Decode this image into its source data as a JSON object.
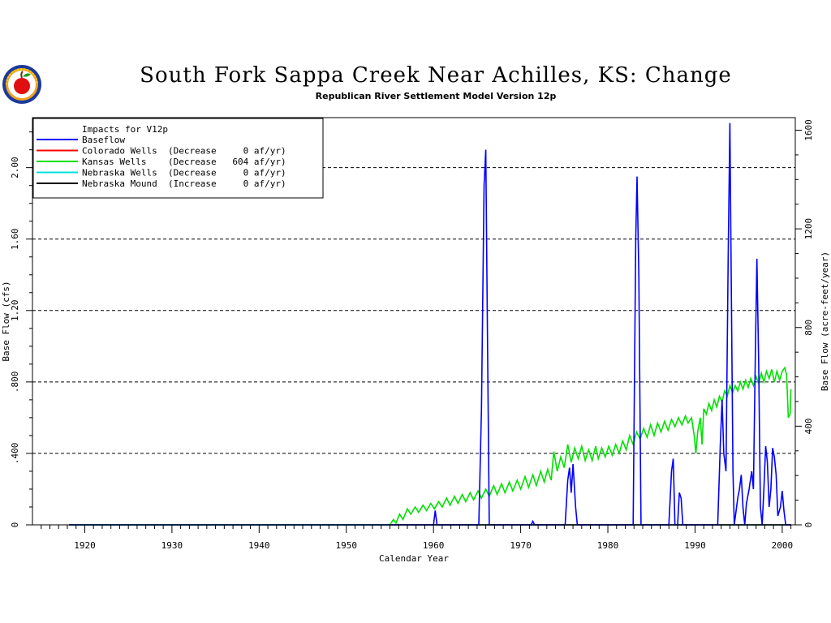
{
  "page": {
    "title": "South Fork Sappa Creek Near Achilles, KS: Change",
    "subtitle": "Republican River Settlement Model Version 12p"
  },
  "logo": {
    "icon": "apple-seal-icon"
  },
  "chart_data": {
    "type": "line",
    "title": "South Fork Sappa Creek Near Achilles, KS: Change",
    "subtitle": "Republican River Settlement Model Version 12p",
    "xlabel": "Calendar Year",
    "ylabel": "Base Flow (cfs)",
    "y2label": "Base Flow (acre-feet/year)",
    "xlim": [
      1914,
      2001.5
    ],
    "ylim": [
      0,
      2.28
    ],
    "y2lim": [
      0,
      1651
    ],
    "x_ticks": [
      1920,
      1930,
      1940,
      1950,
      1960,
      1970,
      1980,
      1990,
      2000
    ],
    "x_tick_labels": [
      "1920",
      "1930",
      "1940",
      "1950",
      "1960",
      "1970",
      "1980",
      "1990",
      "2000"
    ],
    "y_ticks": [
      0,
      0.4,
      0.8,
      1.2,
      1.6,
      2.0
    ],
    "y_tick_labels": [
      "0",
      ".400",
      ".800",
      "1.20",
      "1.60",
      "2.00"
    ],
    "y2_ticks": [
      0,
      400,
      800,
      1200,
      1600
    ],
    "y2_tick_labels": [
      "0",
      "400",
      "800",
      "1200",
      "1600"
    ],
    "grid": "horizontal dashed",
    "legend_position": "top-left",
    "legend": {
      "heading": "Impacts for V12p",
      "entries": [
        {
          "label": "Baseflow",
          "color": "#0000ff"
        },
        {
          "label": "Colorado Wells  (Decrease     0 af/yr)",
          "color": "#ff0000"
        },
        {
          "label": "Kansas Wells    (Decrease   604 af/yr)",
          "color": "#00e000"
        },
        {
          "label": "Nebraska Wells  (Decrease     0 af/yr)",
          "color": "#00e0e0"
        },
        {
          "label": "Nebraska Mound  (Increase     0 af/yr)",
          "color": "#000000"
        }
      ]
    },
    "series": [
      {
        "name": "Baseflow",
        "color": "#0000ff",
        "points": [
          [
            1918.2,
            0
          ],
          [
            1960.0,
            0
          ],
          [
            1960.2,
            0.08
          ],
          [
            1960.4,
            0
          ],
          [
            1965.2,
            0
          ],
          [
            1965.5,
            0.65
          ],
          [
            1965.8,
            1.9
          ],
          [
            1966.0,
            2.1
          ],
          [
            1966.2,
            1.0
          ],
          [
            1966.4,
            0
          ],
          [
            1971.2,
            0
          ],
          [
            1971.4,
            0.02
          ],
          [
            1971.6,
            0
          ],
          [
            1975.1,
            0
          ],
          [
            1975.4,
            0.25
          ],
          [
            1975.6,
            0.32
          ],
          [
            1975.8,
            0.18
          ],
          [
            1976.0,
            0.34
          ],
          [
            1976.3,
            0.1
          ],
          [
            1976.5,
            0
          ],
          [
            1982.9,
            0
          ],
          [
            1983.2,
            1.6
          ],
          [
            1983.35,
            1.95
          ],
          [
            1983.55,
            1.4
          ],
          [
            1983.8,
            0
          ],
          [
            1987.0,
            0
          ],
          [
            1987.3,
            0.3
          ],
          [
            1987.5,
            0.37
          ],
          [
            1987.7,
            0
          ],
          [
            1988.0,
            0
          ],
          [
            1988.2,
            0.18
          ],
          [
            1988.4,
            0.15
          ],
          [
            1988.6,
            0
          ],
          [
            1992.6,
            0
          ],
          [
            1992.9,
            0.45
          ],
          [
            1993.1,
            0.7
          ],
          [
            1993.3,
            0.4
          ],
          [
            1993.55,
            0.3
          ],
          [
            1993.8,
            1.5
          ],
          [
            1994.0,
            2.25
          ],
          [
            1994.2,
            1.1
          ],
          [
            1994.35,
            0.3
          ],
          [
            1994.5,
            0
          ],
          [
            1994.9,
            0.15
          ],
          [
            1995.1,
            0.2
          ],
          [
            1995.3,
            0.28
          ],
          [
            1995.5,
            0.1
          ],
          [
            1995.7,
            0
          ],
          [
            1995.9,
            0.12
          ],
          [
            1996.2,
            0.2
          ],
          [
            1996.5,
            0.3
          ],
          [
            1996.7,
            0.2
          ],
          [
            1996.9,
            0.9
          ],
          [
            1997.1,
            1.49
          ],
          [
            1997.3,
            0.9
          ],
          [
            1997.5,
            0.1
          ],
          [
            1997.7,
            0
          ],
          [
            1997.9,
            0.2
          ],
          [
            1998.1,
            0.44
          ],
          [
            1998.3,
            0.35
          ],
          [
            1998.5,
            0.1
          ],
          [
            1998.7,
            0.2
          ],
          [
            1998.9,
            0.43
          ],
          [
            1999.1,
            0.38
          ],
          [
            1999.3,
            0.28
          ],
          [
            1999.5,
            0.05
          ],
          [
            1999.8,
            0.1
          ],
          [
            2000.0,
            0.19
          ],
          [
            2000.2,
            0.08
          ],
          [
            2000.4,
            0
          ],
          [
            2001.0,
            0
          ]
        ]
      },
      {
        "name": "Kansas Wells",
        "color": "#00e000",
        "points": [
          [
            1918.2,
            0
          ],
          [
            1955.0,
            0
          ],
          [
            1955.4,
            0.03
          ],
          [
            1955.7,
            0.01
          ],
          [
            1956.1,
            0.06
          ],
          [
            1956.5,
            0.03
          ],
          [
            1957.0,
            0.09
          ],
          [
            1957.4,
            0.06
          ],
          [
            1957.9,
            0.1
          ],
          [
            1958.3,
            0.07
          ],
          [
            1958.8,
            0.11
          ],
          [
            1959.2,
            0.08
          ],
          [
            1959.7,
            0.12
          ],
          [
            1960.1,
            0.09
          ],
          [
            1960.6,
            0.13
          ],
          [
            1961.0,
            0.1
          ],
          [
            1961.5,
            0.15
          ],
          [
            1961.9,
            0.11
          ],
          [
            1962.4,
            0.16
          ],
          [
            1962.8,
            0.12
          ],
          [
            1963.3,
            0.17
          ],
          [
            1963.7,
            0.13
          ],
          [
            1964.2,
            0.18
          ],
          [
            1964.6,
            0.14
          ],
          [
            1965.1,
            0.19
          ],
          [
            1965.5,
            0.15
          ],
          [
            1966.0,
            0.2
          ],
          [
            1966.4,
            0.16
          ],
          [
            1966.9,
            0.22
          ],
          [
            1967.3,
            0.17
          ],
          [
            1967.8,
            0.23
          ],
          [
            1968.2,
            0.18
          ],
          [
            1968.7,
            0.24
          ],
          [
            1969.1,
            0.19
          ],
          [
            1969.6,
            0.25
          ],
          [
            1970.0,
            0.2
          ],
          [
            1970.5,
            0.27
          ],
          [
            1970.9,
            0.21
          ],
          [
            1971.4,
            0.28
          ],
          [
            1971.8,
            0.22
          ],
          [
            1972.3,
            0.3
          ],
          [
            1972.7,
            0.24
          ],
          [
            1973.1,
            0.31
          ],
          [
            1973.5,
            0.25
          ],
          [
            1973.8,
            0.41
          ],
          [
            1974.2,
            0.3
          ],
          [
            1974.6,
            0.38
          ],
          [
            1975.0,
            0.32
          ],
          [
            1975.4,
            0.45
          ],
          [
            1975.8,
            0.35
          ],
          [
            1976.2,
            0.43
          ],
          [
            1976.6,
            0.37
          ],
          [
            1977.0,
            0.44
          ],
          [
            1977.4,
            0.36
          ],
          [
            1977.8,
            0.42
          ],
          [
            1978.2,
            0.36
          ],
          [
            1978.6,
            0.44
          ],
          [
            1978.9,
            0.37
          ],
          [
            1979.3,
            0.43
          ],
          [
            1979.7,
            0.38
          ],
          [
            1980.1,
            0.44
          ],
          [
            1980.5,
            0.39
          ],
          [
            1980.9,
            0.45
          ],
          [
            1981.3,
            0.4
          ],
          [
            1981.7,
            0.47
          ],
          [
            1982.1,
            0.42
          ],
          [
            1982.5,
            0.5
          ],
          [
            1982.9,
            0.45
          ],
          [
            1983.3,
            0.52
          ],
          [
            1983.7,
            0.48
          ],
          [
            1984.1,
            0.54
          ],
          [
            1984.5,
            0.49
          ],
          [
            1984.9,
            0.56
          ],
          [
            1985.3,
            0.5
          ],
          [
            1985.7,
            0.57
          ],
          [
            1986.1,
            0.52
          ],
          [
            1986.5,
            0.58
          ],
          [
            1986.9,
            0.53
          ],
          [
            1987.3,
            0.59
          ],
          [
            1987.7,
            0.55
          ],
          [
            1988.1,
            0.6
          ],
          [
            1988.5,
            0.56
          ],
          [
            1988.9,
            0.61
          ],
          [
            1989.2,
            0.57
          ],
          [
            1989.6,
            0.6
          ],
          [
            1989.9,
            0.5
          ],
          [
            1990.1,
            0.4
          ],
          [
            1990.3,
            0.52
          ],
          [
            1990.6,
            0.6
          ],
          [
            1990.8,
            0.45
          ],
          [
            1991.0,
            0.65
          ],
          [
            1991.3,
            0.62
          ],
          [
            1991.6,
            0.68
          ],
          [
            1991.9,
            0.64
          ],
          [
            1992.2,
            0.7
          ],
          [
            1992.5,
            0.66
          ],
          [
            1992.8,
            0.72
          ],
          [
            1993.1,
            0.69
          ],
          [
            1993.4,
            0.75
          ],
          [
            1993.7,
            0.72
          ],
          [
            1994.0,
            0.78
          ],
          [
            1994.3,
            0.74
          ],
          [
            1994.6,
            0.78
          ],
          [
            1994.9,
            0.75
          ],
          [
            1995.2,
            0.8
          ],
          [
            1995.5,
            0.76
          ],
          [
            1995.8,
            0.81
          ],
          [
            1996.1,
            0.77
          ],
          [
            1996.4,
            0.82
          ],
          [
            1996.7,
            0.78
          ],
          [
            1997.0,
            0.83
          ],
          [
            1997.3,
            0.79
          ],
          [
            1997.6,
            0.85
          ],
          [
            1997.9,
            0.8
          ],
          [
            1998.2,
            0.86
          ],
          [
            1998.5,
            0.82
          ],
          [
            1998.8,
            0.87
          ],
          [
            1999.1,
            0.8
          ],
          [
            1999.4,
            0.86
          ],
          [
            1999.7,
            0.81
          ],
          [
            2000.0,
            0.86
          ],
          [
            2000.3,
            0.88
          ],
          [
            2000.5,
            0.84
          ],
          [
            2000.7,
            0.6
          ],
          [
            2000.9,
            0.62
          ],
          [
            2001.0,
            0.76
          ]
        ]
      },
      {
        "name": "Colorado Wells",
        "color": "#ff0000",
        "points": [
          [
            1918.2,
            0
          ],
          [
            2001.0,
            0
          ]
        ]
      },
      {
        "name": "Nebraska Wells",
        "color": "#00e0e0",
        "points": [
          [
            1918.2,
            0
          ],
          [
            2001.0,
            0
          ]
        ]
      },
      {
        "name": "Nebraska Mound",
        "color": "#000000",
        "points": [
          [
            1918.2,
            0
          ],
          [
            2001.0,
            0
          ]
        ]
      }
    ]
  }
}
